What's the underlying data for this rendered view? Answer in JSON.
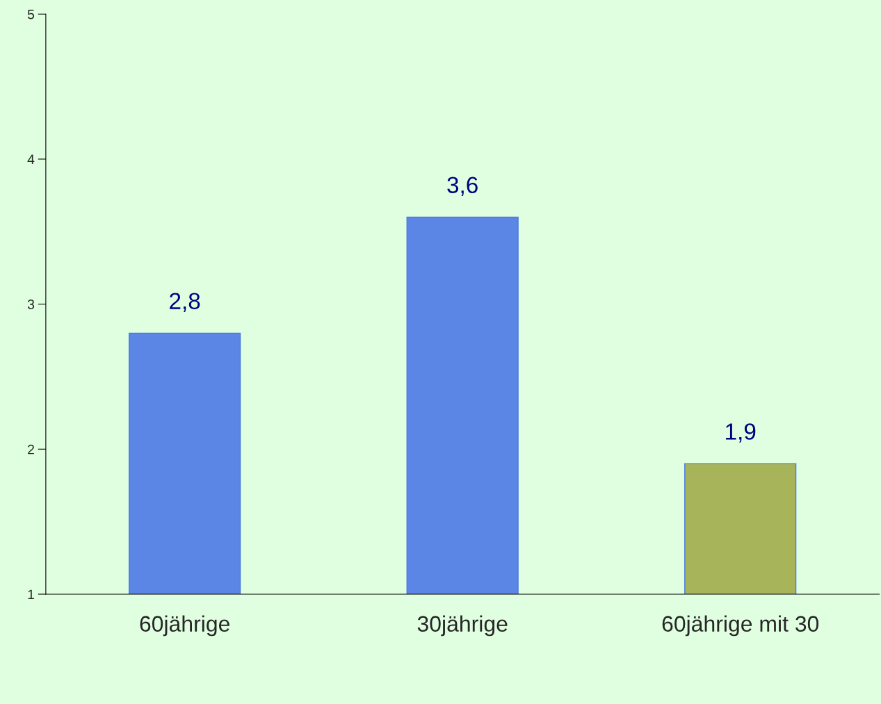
{
  "chart_data": {
    "type": "bar",
    "categories": [
      "60jährige",
      "30jährige",
      "60jährige mit 30"
    ],
    "values": [
      2.8,
      3.6,
      1.9
    ],
    "colors": [
      "#5b86e6",
      "#5b86e6",
      "#a8b45a"
    ],
    "value_labels": [
      "2,8",
      "3,6",
      "1,9"
    ],
    "ylim": [
      1,
      5
    ],
    "yticks": [
      1,
      2,
      3,
      4,
      5
    ],
    "grid": false,
    "legend": false
  }
}
